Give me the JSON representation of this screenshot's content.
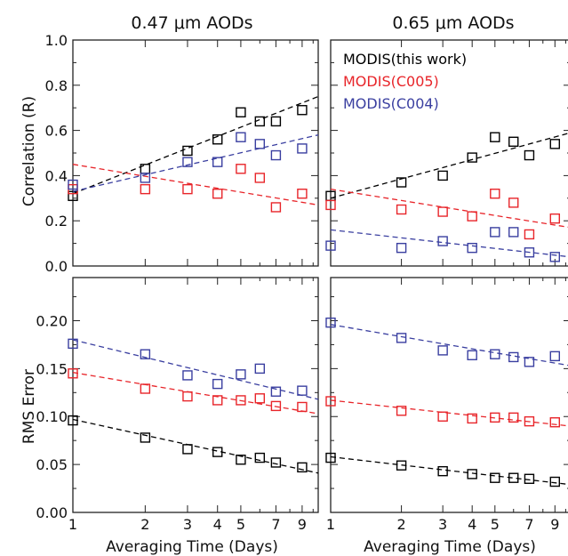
{
  "figure": {
    "col_titles": [
      "0.47 μm AODs",
      "0.65 μm AODs"
    ],
    "xlabel": "Averaging Time (Days)",
    "ylabel_top": "Correlation (R)",
    "ylabel_bottom": "RMS Error"
  },
  "legend": [
    {
      "label": "MODIS(this work)",
      "color": "#000000"
    },
    {
      "label": "MODIS(C005)",
      "color": "#e8252a"
    },
    {
      "label": "MODIS(C004)",
      "color": "#3a3fa0"
    }
  ],
  "chart_data": [
    {
      "type": "scatter",
      "panel": "top-left",
      "title": "0.47 μm AODs",
      "xlabel": "",
      "ylabel": "Correlation (R)",
      "xscale": "log",
      "xlim": [
        1,
        10.5
      ],
      "ylim": [
        0,
        1.0
      ],
      "x_ticks": [
        "1",
        "2",
        "3",
        "4",
        "5",
        "7",
        "9"
      ],
      "y_ticks": [
        "0.0",
        "0.2",
        "0.4",
        "0.6",
        "0.8",
        "1.0"
      ],
      "x": [
        1,
        2,
        3,
        4,
        5,
        6,
        7,
        9
      ],
      "series": [
        {
          "name": "MODIS(this work)",
          "color": "#000000",
          "values": [
            0.31,
            0.43,
            0.51,
            0.56,
            0.68,
            0.64,
            0.64,
            0.69
          ],
          "trend": [
            0.32,
            0.75
          ]
        },
        {
          "name": "MODIS(C005)",
          "color": "#e8252a",
          "values": [
            0.34,
            0.34,
            0.34,
            0.32,
            0.43,
            0.39,
            0.26,
            0.32
          ],
          "trend": [
            0.45,
            0.27
          ]
        },
        {
          "name": "MODIS(C004)",
          "color": "#3a3fa0",
          "values": [
            0.36,
            0.39,
            0.46,
            0.46,
            0.57,
            0.54,
            0.49,
            0.52
          ],
          "trend": [
            0.33,
            0.58
          ]
        }
      ]
    },
    {
      "type": "scatter",
      "panel": "top-right",
      "title": "0.65 μm AODs",
      "xlabel": "",
      "ylabel": "",
      "xscale": "log",
      "xlim": [
        1,
        10.5
      ],
      "ylim": [
        0,
        1.0
      ],
      "x_ticks": [
        "1",
        "2",
        "3",
        "4",
        "5",
        "7",
        "9"
      ],
      "y_ticks": [],
      "x": [
        1,
        2,
        3,
        4,
        5,
        6,
        7,
        9
      ],
      "series": [
        {
          "name": "MODIS(this work)",
          "color": "#000000",
          "values": [
            0.31,
            0.37,
            0.4,
            0.48,
            0.57,
            0.55,
            0.49,
            0.54
          ],
          "trend": [
            0.3,
            0.59
          ]
        },
        {
          "name": "MODIS(C005)",
          "color": "#e8252a",
          "values": [
            0.27,
            0.25,
            0.24,
            0.22,
            0.32,
            0.28,
            0.14,
            0.21
          ],
          "trend": [
            0.34,
            0.17
          ]
        },
        {
          "name": "MODIS(C004)",
          "color": "#3a3fa0",
          "values": [
            0.09,
            0.08,
            0.11,
            0.08,
            0.15,
            0.15,
            0.06,
            0.04
          ],
          "trend": [
            0.16,
            0.04
          ]
        }
      ]
    },
    {
      "type": "scatter",
      "panel": "bottom-left",
      "title": "",
      "xlabel": "Averaging Time (Days)",
      "ylabel": "RMS Error",
      "xscale": "log",
      "xlim": [
        1,
        10.5
      ],
      "ylim": [
        0,
        0.245
      ],
      "x_ticks": [
        "1",
        "2",
        "3",
        "4",
        "5",
        "7",
        "9"
      ],
      "y_ticks": [
        "0.00",
        "0.05",
        "0.10",
        "0.15",
        "0.20"
      ],
      "x": [
        1,
        2,
        3,
        4,
        5,
        6,
        7,
        9
      ],
      "series": [
        {
          "name": "MODIS(this work)",
          "color": "#000000",
          "values": [
            0.096,
            0.078,
            0.066,
            0.063,
            0.055,
            0.057,
            0.052,
            0.047
          ],
          "trend": [
            0.097,
            0.041
          ]
        },
        {
          "name": "MODIS(C005)",
          "color": "#e8252a",
          "values": [
            0.145,
            0.129,
            0.121,
            0.117,
            0.117,
            0.119,
            0.111,
            0.11
          ],
          "trend": [
            0.146,
            0.103
          ]
        },
        {
          "name": "MODIS(C004)",
          "color": "#3a3fa0",
          "values": [
            0.176,
            0.165,
            0.143,
            0.134,
            0.144,
            0.15,
            0.126,
            0.127
          ],
          "trend": [
            0.18,
            0.118
          ]
        }
      ]
    },
    {
      "type": "scatter",
      "panel": "bottom-right",
      "title": "",
      "xlabel": "Averaging Time (Days)",
      "ylabel": "",
      "xscale": "log",
      "xlim": [
        1,
        10.5
      ],
      "ylim": [
        0,
        0.245
      ],
      "x_ticks": [
        "1",
        "2",
        "3",
        "4",
        "5",
        "7",
        "9"
      ],
      "y_ticks": [],
      "x": [
        1,
        2,
        3,
        4,
        5,
        6,
        7,
        9
      ],
      "series": [
        {
          "name": "MODIS(this work)",
          "color": "#000000",
          "values": [
            0.057,
            0.049,
            0.043,
            0.04,
            0.036,
            0.036,
            0.035,
            0.032
          ],
          "trend": [
            0.058,
            0.029
          ]
        },
        {
          "name": "MODIS(C005)",
          "color": "#e8252a",
          "values": [
            0.116,
            0.106,
            0.1,
            0.098,
            0.099,
            0.099,
            0.095,
            0.094
          ],
          "trend": [
            0.117,
            0.09
          ]
        },
        {
          "name": "MODIS(C004)",
          "color": "#3a3fa0",
          "values": [
            0.198,
            0.182,
            0.169,
            0.164,
            0.165,
            0.162,
            0.157,
            0.163
          ],
          "trend": [
            0.196,
            0.153
          ]
        }
      ]
    }
  ]
}
